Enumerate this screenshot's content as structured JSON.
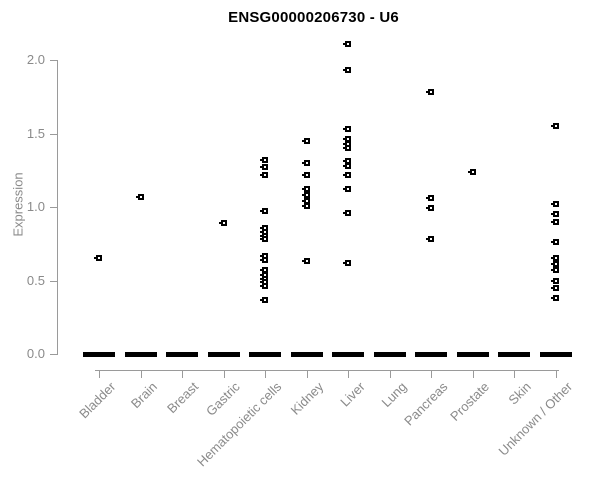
{
  "chart_data": {
    "type": "scatter",
    "title": "ENSG00000206730 - U6",
    "xlabel": "",
    "ylabel": "Expression",
    "ylim": [
      0.0,
      2.15
    ],
    "yticks": [
      "0.0",
      "0.5",
      "1.0",
      "1.5",
      "2.0"
    ],
    "grid": false,
    "legend_position": "none",
    "marker": "small-open-black-square-with-left-tick",
    "xticklabel_rotation": 45,
    "axis_color": "#9a9a9a",
    "tick_text_color": "#8a8a8a",
    "point_color": "#000000",
    "zero_dash_note": "thick solid black dash at expression 0.0 under every category (many overlapping zero-value samples)",
    "categories": [
      "Bladder",
      "Brain",
      "Breast",
      "Gastric",
      "Hematopoietic cells",
      "Kidney",
      "Liver",
      "Lung",
      "Pancreas",
      "Prostate",
      "Skin",
      "Unknown / Other"
    ],
    "series": [
      {
        "name": "Bladder",
        "zero_dash": true,
        "values": [
          0.65
        ]
      },
      {
        "name": "Brain",
        "zero_dash": true,
        "values": [
          1.07
        ]
      },
      {
        "name": "Breast",
        "zero_dash": true,
        "values": []
      },
      {
        "name": "Gastric",
        "zero_dash": true,
        "values": [
          0.89
        ]
      },
      {
        "name": "Hematopoietic cells",
        "zero_dash": true,
        "values": [
          1.32,
          1.27,
          1.22,
          0.97,
          0.86,
          0.83,
          0.8,
          0.78,
          0.67,
          0.64,
          0.57,
          0.54,
          0.51,
          0.49,
          0.46,
          0.37
        ]
      },
      {
        "name": "Kidney",
        "zero_dash": true,
        "values": [
          1.45,
          1.3,
          1.22,
          1.12,
          1.08,
          1.04,
          1.01,
          0.63
        ]
      },
      {
        "name": "Liver",
        "zero_dash": true,
        "values": [
          2.11,
          1.93,
          1.53,
          1.46,
          1.43,
          1.4,
          1.31,
          1.28,
          1.22,
          1.12,
          0.96,
          0.62
        ]
      },
      {
        "name": "Lung",
        "zero_dash": true,
        "values": []
      },
      {
        "name": "Pancreas",
        "zero_dash": true,
        "values": [
          1.78,
          1.06,
          0.99,
          0.78
        ]
      },
      {
        "name": "Prostate",
        "zero_dash": true,
        "values": [
          1.24
        ]
      },
      {
        "name": "Skin",
        "zero_dash": true,
        "values": []
      },
      {
        "name": "Unknown / Other",
        "zero_dash": true,
        "values": [
          1.55,
          1.02,
          0.95,
          0.9,
          0.76,
          0.65,
          0.61,
          0.57,
          0.5,
          0.45,
          0.38
        ]
      }
    ]
  }
}
